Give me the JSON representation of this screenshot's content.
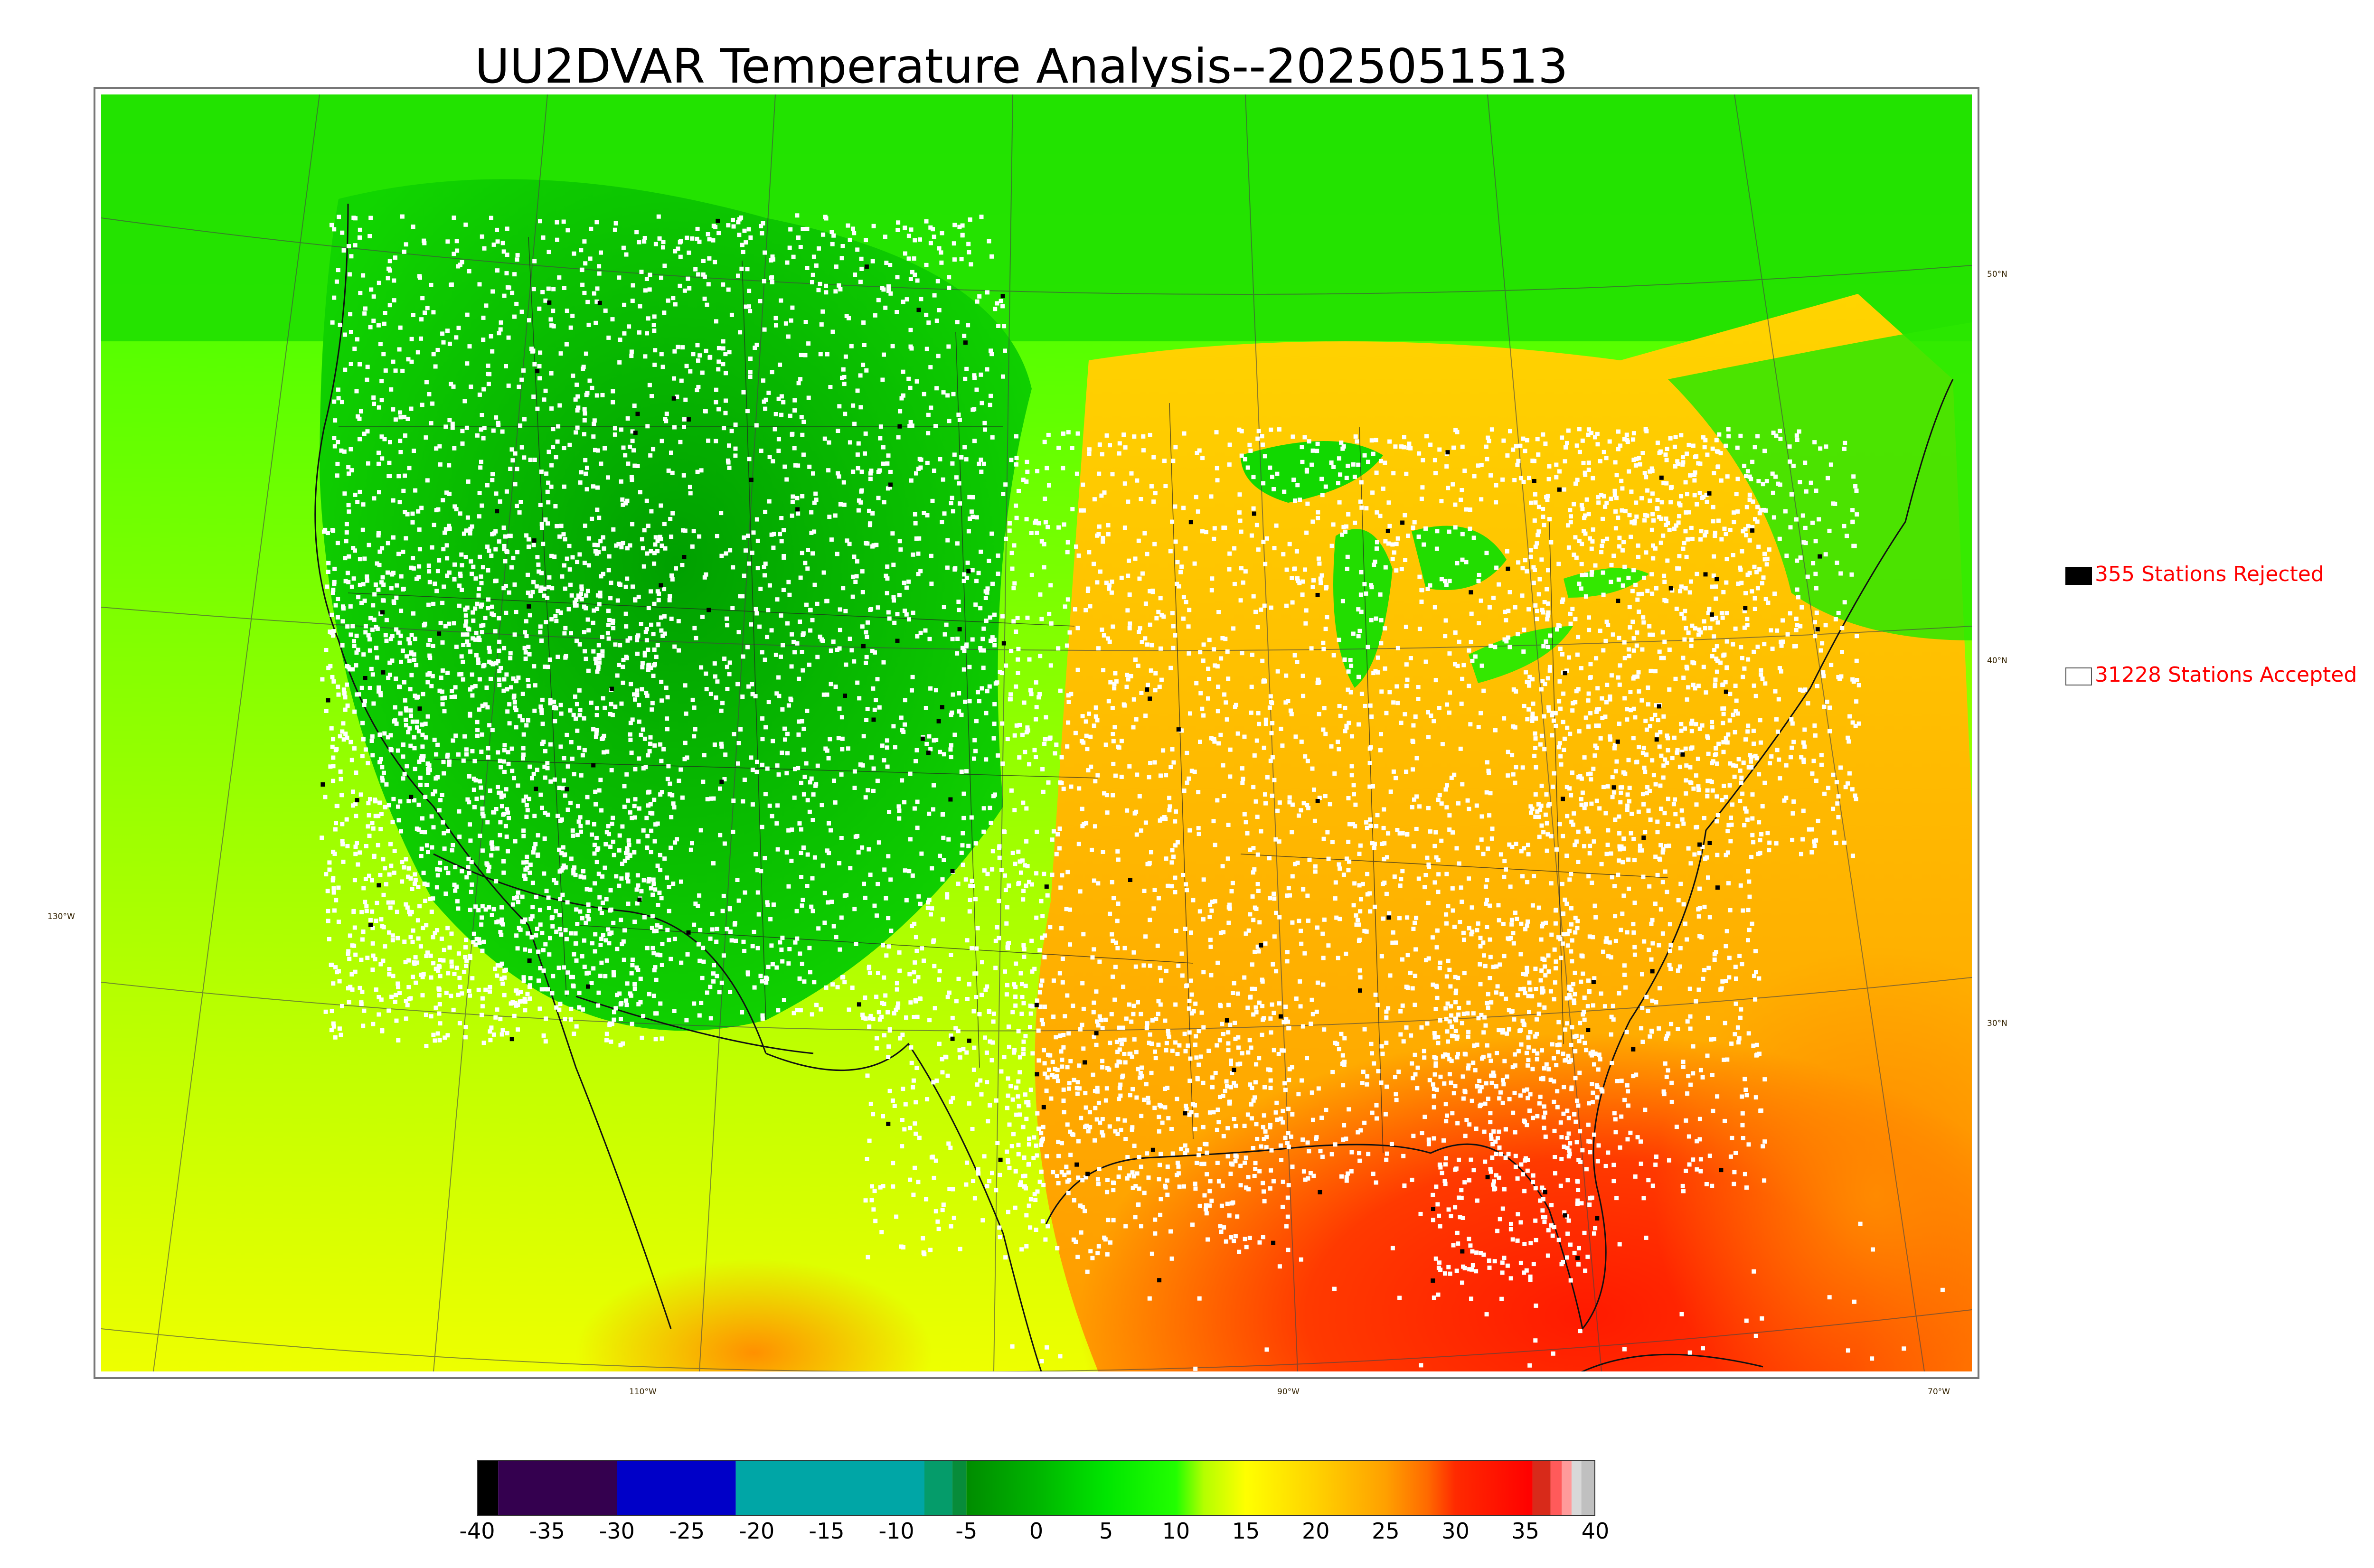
{
  "title": "UU2DVAR Temperature Analysis--2025051513",
  "map": {
    "lon_labels": [
      "130°W",
      "110°W",
      "90°W",
      "70°W"
    ],
    "lat_labels": [
      "50°N",
      "40°N",
      "30°N"
    ]
  },
  "legend": {
    "rejected": {
      "count": 355,
      "label": "355 Stations Rejected",
      "color": "#000000"
    },
    "accepted": {
      "count": 31228,
      "label": "31228 Stations Accepted",
      "color": "#ffffff"
    }
  },
  "colorbar": {
    "min": -40,
    "max": 40,
    "tick_labels": [
      "-40",
      "-35",
      "-30",
      "-25",
      "-20",
      "-15",
      "-10",
      "-5",
      "0",
      "5",
      "10",
      "15",
      "20",
      "25",
      "30",
      "35",
      "40"
    ],
    "segments": [
      {
        "from": -40,
        "to": -38.5,
        "color": "#000000"
      },
      {
        "from": -38.5,
        "to": -30,
        "color": "#34004f"
      },
      {
        "from": -30,
        "to": -21.5,
        "color": "#0000c8"
      },
      {
        "from": -21.5,
        "to": -8,
        "color": "#00a6a6"
      },
      {
        "from": -8,
        "to": -6,
        "color": "#059c6a"
      },
      {
        "from": -6,
        "to": -5,
        "color": "#078c3a"
      },
      {
        "from": -5,
        "to": 35.5,
        "color": "gradient"
      },
      {
        "from": 35.5,
        "to": 36.8,
        "color": "#d82a1a"
      },
      {
        "from": 36.8,
        "to": 37.6,
        "color": "#ff5a5a"
      },
      {
        "from": 37.6,
        "to": 38.3,
        "color": "#ff9a9a"
      },
      {
        "from": 38.3,
        "to": 39,
        "color": "#d8d8d8"
      },
      {
        "from": 39,
        "to": 40,
        "color": "#c0c0c0"
      }
    ],
    "gradient_stops": [
      {
        "value": -5,
        "color": "#008c00"
      },
      {
        "value": 0,
        "color": "#00b400"
      },
      {
        "value": 5,
        "color": "#00e600"
      },
      {
        "value": 10,
        "color": "#22ff00"
      },
      {
        "value": 12,
        "color": "#b4ff00"
      },
      {
        "value": 15,
        "color": "#ffff00"
      },
      {
        "value": 20,
        "color": "#ffd200"
      },
      {
        "value": 25,
        "color": "#ffa000"
      },
      {
        "value": 28,
        "color": "#ff6a00"
      },
      {
        "value": 30,
        "color": "#ff2a00"
      },
      {
        "value": 35.5,
        "color": "#ff0000"
      }
    ]
  }
}
